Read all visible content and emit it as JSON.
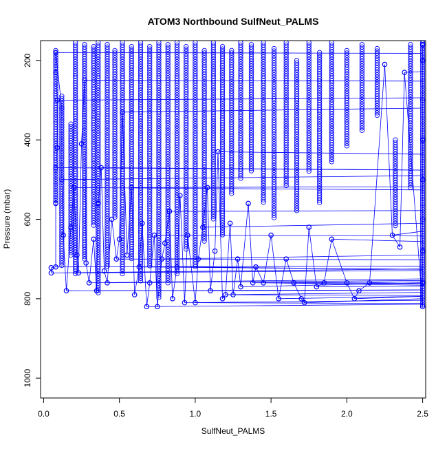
{
  "chart_data": {
    "type": "scatter",
    "title": "ATOM3 Northbound SulfNeut_PALMS",
    "xlabel": "SulfNeut_PALMS",
    "ylabel": "Pressure (mbar)",
    "xlim": [
      -0.02,
      2.52
    ],
    "ylim": [
      1050,
      150
    ],
    "y_reversed": true,
    "x_ticks": [
      "0.0",
      "0.5",
      "1.0",
      "1.5",
      "2.0",
      "2.5"
    ],
    "y_ticks": [
      "200",
      "400",
      "600",
      "800",
      "1000"
    ],
    "grid": false,
    "legend": "none",
    "series_color": "#0000ff",
    "marker": "open-circle",
    "connected_by_lines": true,
    "series": [
      {
        "points": [
          {
            "x": 0.05,
            "y": 735
          },
          {
            "x": 0.05,
            "y": 722
          },
          {
            "x": 0.08,
            "y": 720
          },
          {
            "x": 0.08,
            "y": 560
          },
          {
            "x": 0.08,
            "y": 470
          },
          {
            "x": 0.09,
            "y": 420
          },
          {
            "x": 0.09,
            "y": 300
          },
          {
            "x": 0.08,
            "y": 230
          },
          {
            "x": 0.08,
            "y": 180
          },
          {
            "x": 0.12,
            "y": 320
          },
          {
            "x": 0.12,
            "y": 500
          },
          {
            "x": 0.13,
            "y": 640
          },
          {
            "x": 0.15,
            "y": 780
          },
          {
            "x": 0.18,
            "y": 620
          },
          {
            "x": 0.2,
            "y": 520
          },
          {
            "x": 0.22,
            "y": 690
          },
          {
            "x": 0.23,
            "y": 735
          },
          {
            "x": 0.25,
            "y": 410
          },
          {
            "x": 0.27,
            "y": 250
          },
          {
            "x": 0.28,
            "y": 710
          },
          {
            "x": 0.3,
            "y": 760
          },
          {
            "x": 0.33,
            "y": 650
          },
          {
            "x": 0.35,
            "y": 780
          },
          {
            "x": 0.36,
            "y": 560
          },
          {
            "x": 0.38,
            "y": 470
          },
          {
            "x": 0.4,
            "y": 730
          },
          {
            "x": 0.42,
            "y": 760
          },
          {
            "x": 0.45,
            "y": 600
          },
          {
            "x": 0.48,
            "y": 700
          },
          {
            "x": 0.5,
            "y": 650
          },
          {
            "x": 0.52,
            "y": 330
          },
          {
            "x": 0.55,
            "y": 690
          },
          {
            "x": 0.58,
            "y": 520
          },
          {
            "x": 0.6,
            "y": 790
          },
          {
            "x": 0.63,
            "y": 720
          },
          {
            "x": 0.65,
            "y": 610
          },
          {
            "x": 0.68,
            "y": 820
          },
          {
            "x": 0.7,
            "y": 760
          },
          {
            "x": 0.73,
            "y": 640
          },
          {
            "x": 0.75,
            "y": 820
          },
          {
            "x": 0.78,
            "y": 700
          },
          {
            "x": 0.8,
            "y": 660
          },
          {
            "x": 0.83,
            "y": 580
          },
          {
            "x": 0.85,
            "y": 800
          },
          {
            "x": 0.88,
            "y": 720
          },
          {
            "x": 0.9,
            "y": 540
          },
          {
            "x": 0.93,
            "y": 810
          },
          {
            "x": 0.95,
            "y": 640
          },
          {
            "x": 1.0,
            "y": 810
          },
          {
            "x": 1.02,
            "y": 700
          },
          {
            "x": 1.05,
            "y": 620
          },
          {
            "x": 1.08,
            "y": 520
          },
          {
            "x": 1.1,
            "y": 780
          },
          {
            "x": 1.13,
            "y": 680
          },
          {
            "x": 1.15,
            "y": 430
          },
          {
            "x": 1.18,
            "y": 800
          },
          {
            "x": 1.2,
            "y": 790
          },
          {
            "x": 1.23,
            "y": 610
          },
          {
            "x": 1.25,
            "y": 790
          },
          {
            "x": 1.28,
            "y": 700
          },
          {
            "x": 1.3,
            "y": 770
          },
          {
            "x": 1.35,
            "y": 560
          },
          {
            "x": 1.38,
            "y": 760
          },
          {
            "x": 1.4,
            "y": 720
          },
          {
            "x": 1.45,
            "y": 760
          },
          {
            "x": 1.5,
            "y": 640
          },
          {
            "x": 1.55,
            "y": 800
          },
          {
            "x": 1.6,
            "y": 700
          },
          {
            "x": 1.65,
            "y": 760
          },
          {
            "x": 1.7,
            "y": 800
          },
          {
            "x": 1.72,
            "y": 810
          },
          {
            "x": 1.75,
            "y": 620
          },
          {
            "x": 1.8,
            "y": 770
          },
          {
            "x": 1.85,
            "y": 760
          },
          {
            "x": 1.9,
            "y": 650
          },
          {
            "x": 2.0,
            "y": 760
          },
          {
            "x": 2.05,
            "y": 800
          },
          {
            "x": 2.08,
            "y": 780
          },
          {
            "x": 2.15,
            "y": 760
          },
          {
            "x": 2.25,
            "y": 210
          },
          {
            "x": 2.3,
            "y": 640
          },
          {
            "x": 2.35,
            "y": 670
          },
          {
            "x": 2.38,
            "y": 230
          },
          {
            "x": 2.5,
            "y": 820
          },
          {
            "x": 2.5,
            "y": 760
          },
          {
            "x": 2.5,
            "y": 680
          },
          {
            "x": 2.5,
            "y": 600
          },
          {
            "x": 2.5,
            "y": 500
          },
          {
            "x": 2.5,
            "y": 400
          },
          {
            "x": 2.5,
            "y": 300
          },
          {
            "x": 2.5,
            "y": 200
          },
          {
            "x": 2.5,
            "y": 160
          }
        ],
        "profiles": [
          {
            "x": 0.08,
            "y_from": 175,
            "y_to": 560
          },
          {
            "x": 0.12,
            "y_from": 290,
            "y_to": 720
          },
          {
            "x": 0.18,
            "y_from": 360,
            "y_to": 690
          },
          {
            "x": 0.21,
            "y_from": 155,
            "y_to": 740
          },
          {
            "x": 0.27,
            "y_from": 160,
            "y_to": 700
          },
          {
            "x": 0.33,
            "y_from": 165,
            "y_to": 620
          },
          {
            "x": 0.36,
            "y_from": 155,
            "y_to": 790
          },
          {
            "x": 0.42,
            "y_from": 160,
            "y_to": 720
          },
          {
            "x": 0.47,
            "y_from": 175,
            "y_to": 600
          },
          {
            "x": 0.52,
            "y_from": 155,
            "y_to": 740
          },
          {
            "x": 0.58,
            "y_from": 165,
            "y_to": 700
          },
          {
            "x": 0.64,
            "y_from": 155,
            "y_to": 760
          },
          {
            "x": 0.7,
            "y_from": 165,
            "y_to": 720
          },
          {
            "x": 0.76,
            "y_from": 155,
            "y_to": 800
          },
          {
            "x": 0.82,
            "y_from": 160,
            "y_to": 760
          },
          {
            "x": 0.88,
            "y_from": 155,
            "y_to": 740
          },
          {
            "x": 0.94,
            "y_from": 165,
            "y_to": 680
          },
          {
            "x": 1.0,
            "y_from": 155,
            "y_to": 720
          },
          {
            "x": 1.06,
            "y_from": 175,
            "y_to": 660
          },
          {
            "x": 1.12,
            "y_from": 155,
            "y_to": 600
          },
          {
            "x": 1.18,
            "y_from": 165,
            "y_to": 640
          },
          {
            "x": 1.24,
            "y_from": 175,
            "y_to": 540
          },
          {
            "x": 1.3,
            "y_from": 155,
            "y_to": 500
          },
          {
            "x": 1.37,
            "y_from": 160,
            "y_to": 480
          },
          {
            "x": 1.45,
            "y_from": 155,
            "y_to": 560
          },
          {
            "x": 1.52,
            "y_from": 170,
            "y_to": 600
          },
          {
            "x": 1.6,
            "y_from": 155,
            "y_to": 520
          },
          {
            "x": 1.67,
            "y_from": 200,
            "y_to": 580
          },
          {
            "x": 1.75,
            "y_from": 155,
            "y_to": 480
          },
          {
            "x": 1.82,
            "y_from": 180,
            "y_to": 560
          },
          {
            "x": 1.9,
            "y_from": 155,
            "y_to": 460
          },
          {
            "x": 2.0,
            "y_from": 175,
            "y_to": 420
          },
          {
            "x": 2.1,
            "y_from": 160,
            "y_to": 380
          },
          {
            "x": 2.2,
            "y_from": 170,
            "y_to": 340
          },
          {
            "x": 2.32,
            "y_from": 400,
            "y_to": 620
          },
          {
            "x": 2.42,
            "y_from": 160,
            "y_to": 520
          },
          {
            "x": 2.5,
            "y_from": 150,
            "y_to": 820
          }
        ]
      }
    ]
  }
}
